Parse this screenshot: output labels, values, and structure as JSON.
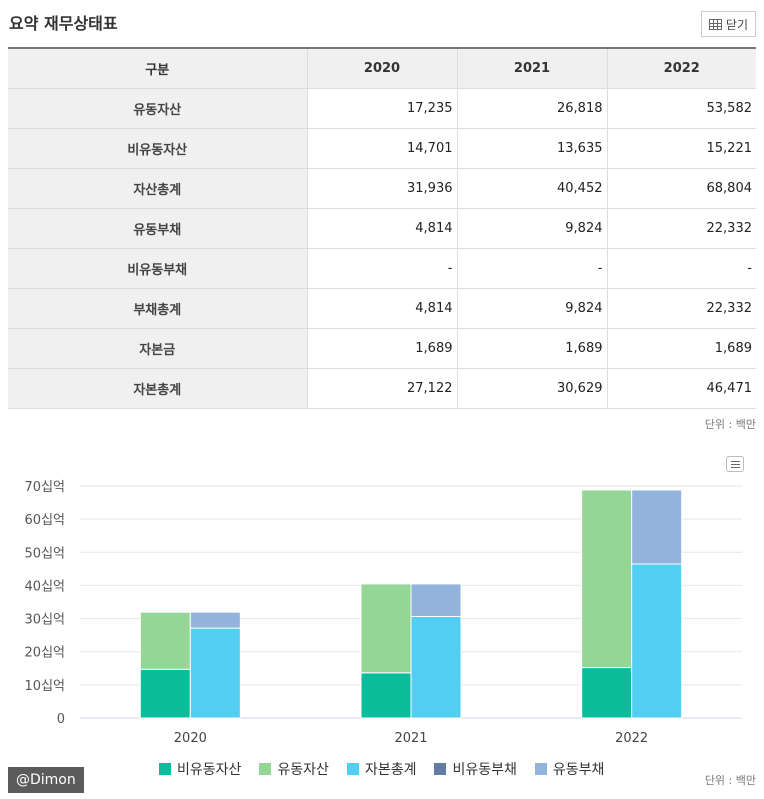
{
  "title": "요약 재무상태표",
  "close_label": "닫기",
  "table": {
    "headers": [
      "구분",
      "2020",
      "2021",
      "2022"
    ],
    "rows": [
      {
        "label": "유동자산",
        "values": [
          "17,235",
          "26,818",
          "53,582"
        ]
      },
      {
        "label": "비유동자산",
        "values": [
          "14,701",
          "13,635",
          "15,221"
        ]
      },
      {
        "label": "자산총계",
        "values": [
          "31,936",
          "40,452",
          "68,804"
        ]
      },
      {
        "label": "유동부채",
        "values": [
          "4,814",
          "9,824",
          "22,332"
        ]
      },
      {
        "label": "비유동부채",
        "values": [
          "-",
          "-",
          "-"
        ]
      },
      {
        "label": "부채총계",
        "values": [
          "4,814",
          "9,824",
          "22,332"
        ]
      },
      {
        "label": "자본금",
        "values": [
          "1,689",
          "1,689",
          "1,689"
        ]
      },
      {
        "label": "자본총계",
        "values": [
          "27,122",
          "30,629",
          "46,471"
        ]
      }
    ]
  },
  "unit_label": "단위 : 백만",
  "watermark": "@Dimon",
  "chart_data": {
    "type": "bar",
    "stacked": true,
    "categories": [
      "2020",
      "2021",
      "2022"
    ],
    "ylim": [
      0,
      70
    ],
    "yticks": [
      "0",
      "10십억",
      "20십억",
      "30십억",
      "40십억",
      "50십억",
      "60십억",
      "70십억"
    ],
    "grid": true,
    "legend_position": "bottom",
    "stacks": [
      {
        "stack": "assets",
        "series": [
          "비유동자산",
          "유동자산"
        ]
      },
      {
        "stack": "liab_equity",
        "series": [
          "자본총계",
          "비유동부채",
          "유동부채"
        ]
      }
    ],
    "series": [
      {
        "name": "비유동자산",
        "stack": "assets",
        "color": "#0bbd9b",
        "values": [
          14.701,
          13.635,
          15.221
        ]
      },
      {
        "name": "유동자산",
        "stack": "assets",
        "color": "#93d696",
        "values": [
          17.235,
          26.818,
          53.582
        ]
      },
      {
        "name": "자본총계",
        "stack": "liab_equity",
        "color": "#53cef3",
        "values": [
          27.122,
          30.629,
          46.471
        ]
      },
      {
        "name": "비유동부채",
        "stack": "liab_equity",
        "color": "#647ca2",
        "values": [
          0,
          0,
          0
        ]
      },
      {
        "name": "유동부채",
        "stack": "liab_equity",
        "color": "#92b3dc",
        "values": [
          4.814,
          9.824,
          22.332
        ]
      }
    ]
  }
}
